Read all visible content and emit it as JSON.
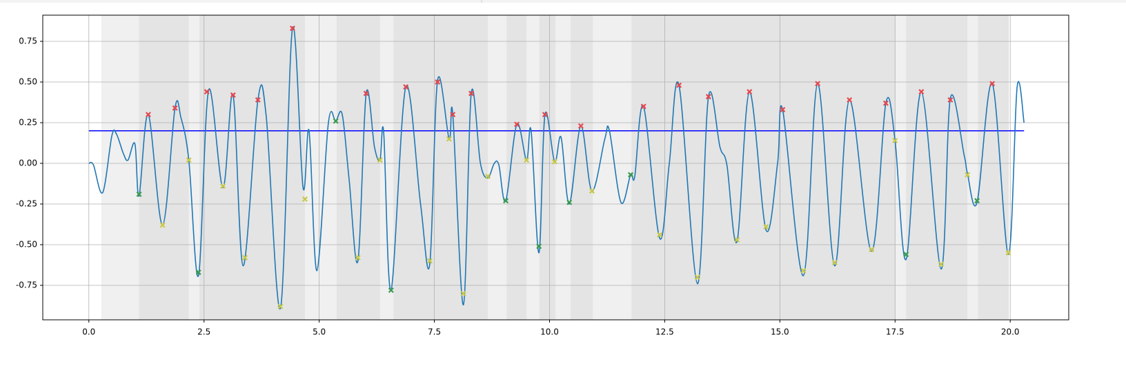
{
  "chart_data": {
    "type": "line",
    "xlim": [
      -1.0,
      21.27
    ],
    "ylim": [
      -0.962,
      0.911
    ],
    "grid": true,
    "xticks": [
      {
        "value": 0,
        "label": "0.0"
      },
      2.5,
      {
        "value": 5,
        "label": "5.0"
      },
      7.5,
      {
        "value": 10,
        "label": "10.0"
      },
      12.5,
      {
        "value": 15,
        "label": "15.0"
      },
      17.5,
      {
        "value": 20,
        "label": "20.0"
      }
    ],
    "yticks": [
      -0.75,
      {
        "value": -0.5,
        "label": "-0.50"
      },
      -0.25,
      {
        "value": 0,
        "label": "0.00"
      },
      0.25,
      {
        "value": 0.5,
        "label": "0.50"
      },
      0.75
    ],
    "spans": [
      {
        "color": "#f0f0f0",
        "start": [
          0.27
        ],
        "end": [
          19.97
        ]
      },
      {
        "color": "#e4e4e4",
        "start": [
          1.09,
          2.4,
          5.38,
          6.61,
          9.07,
          9.78,
          10.46,
          11.78,
          17.74,
          19.3
        ],
        "end": [
          2.17,
          4.69,
          6.32,
          8.66,
          9.5,
          10.13,
          10.94,
          17.5,
          19.07,
          19.97
        ]
      }
    ],
    "threshold": {
      "value": 0.2,
      "x": [
        0,
        20.3
      ],
      "color": "#0000ff"
    },
    "x": [
      0,
      0.1,
      0.3,
      0.5,
      0.6,
      0.75,
      0.85,
      1.0,
      1.09,
      1.29,
      1.6,
      1.87,
      2.0,
      2.17,
      2.38,
      2.6,
      2.91,
      3.13,
      3.35,
      3.67,
      3.85,
      4.16,
      4.42,
      4.65,
      4.78,
      4.95,
      5.2,
      5.36,
      5.5,
      5.65,
      5.84,
      6.02,
      6.2,
      6.32,
      6.4,
      6.56,
      6.88,
      7.2,
      7.4,
      7.57,
      7.82,
      7.9,
      8.13,
      8.3,
      8.5,
      8.66,
      8.8,
      8.9,
      9.05,
      9.29,
      9.5,
      9.6,
      9.77,
      9.9,
      10.11,
      10.25,
      10.43,
      10.68,
      10.92,
      11.2,
      11.3,
      11.55,
      11.76,
      11.85,
      12.04,
      12.39,
      12.6,
      12.81,
      13.21,
      13.45,
      13.7,
      13.85,
      14.07,
      14.34,
      14.7,
      14.95,
      15.06,
      15.51,
      15.82,
      16.19,
      16.51,
      16.99,
      17.3,
      17.5,
      17.74,
      18.07,
      18.5,
      18.7,
      19.0,
      19.07,
      19.28,
      19.61,
      19.96,
      20.15,
      20.3
    ],
    "series": [
      {
        "color": "#1f77b4",
        "values": [
          0,
          -0.01,
          -0.18,
          0.17,
          0.18,
          0.06,
          0.02,
          0.12,
          -0.2,
          0.3,
          -0.38,
          0.34,
          0.28,
          0.02,
          -0.69,
          0.45,
          -0.15,
          0.42,
          -0.63,
          0.39,
          0.29,
          -0.89,
          0.83,
          -0.15,
          0.2,
          -0.66,
          0.25,
          0.26,
          0.3,
          -0.1,
          -0.6,
          0.43,
          0.1,
          0.02,
          0.19,
          -0.78,
          0.47,
          -0.25,
          -0.62,
          0.51,
          0.15,
          0.3,
          -0.87,
          0.43,
          0.0,
          -0.09,
          0.0,
          -0.01,
          -0.23,
          0.24,
          0.02,
          0.2,
          -0.55,
          0.3,
          0.01,
          0.16,
          -0.25,
          0.23,
          -0.17,
          0.15,
          0.2,
          -0.24,
          -0.07,
          -0.08,
          0.35,
          -0.46,
          0.0,
          0.48,
          -0.74,
          0.41,
          0.1,
          -0.01,
          -0.48,
          0.44,
          -0.41,
          0.0,
          0.33,
          -0.69,
          0.49,
          -0.63,
          0.39,
          -0.54,
          0.37,
          0.14,
          -0.59,
          0.44,
          -0.65,
          0.4,
          0.05,
          -0.06,
          -0.24,
          0.49,
          -0.56,
          0.47,
          0.25
        ]
      }
    ],
    "markers": [
      {
        "color": "#e5484d",
        "x": [
          1.29,
          1.87,
          2.56,
          3.13,
          3.67,
          4.42,
          6.02,
          6.88,
          7.57,
          7.9,
          8.3,
          9.29,
          9.9,
          10.68,
          12.04,
          12.81,
          13.45,
          14.34,
          15.06,
          15.82,
          16.51,
          17.3,
          18.07,
          18.7,
          19.61
        ],
        "values": [
          0.3,
          0.34,
          0.44,
          0.42,
          0.39,
          0.83,
          0.43,
          0.47,
          0.5,
          0.3,
          0.43,
          0.24,
          0.3,
          0.23,
          0.35,
          0.48,
          0.41,
          0.44,
          0.33,
          0.49,
          0.39,
          0.37,
          0.44,
          0.39,
          0.49
        ]
      },
      {
        "color": "#c8c84a",
        "x": [
          1.6,
          2.17,
          2.91,
          3.39,
          4.16,
          4.69,
          5.84,
          6.32,
          7.4,
          7.82,
          8.13,
          8.66,
          9.5,
          10.11,
          10.92,
          12.39,
          13.21,
          14.07,
          14.7,
          15.51,
          16.19,
          16.99,
          17.5,
          18.5,
          19.07,
          19.96
        ],
        "values": [
          -0.38,
          0.02,
          -0.14,
          -0.58,
          -0.88,
          -0.22,
          -0.58,
          0.02,
          -0.6,
          0.15,
          -0.8,
          -0.08,
          0.02,
          0.01,
          -0.17,
          -0.44,
          -0.7,
          -0.47,
          -0.39,
          -0.66,
          -0.61,
          -0.53,
          0.14,
          -0.62,
          -0.07,
          -0.55
        ]
      },
      {
        "color": "#3a9a50",
        "x": [
          1.09,
          2.38,
          5.36,
          6.56,
          9.05,
          9.77,
          10.43,
          11.76,
          17.74,
          19.28
        ],
        "values": [
          -0.19,
          -0.67,
          0.26,
          -0.78,
          -0.23,
          -0.51,
          -0.24,
          -0.07,
          -0.56,
          -0.23
        ]
      }
    ]
  }
}
